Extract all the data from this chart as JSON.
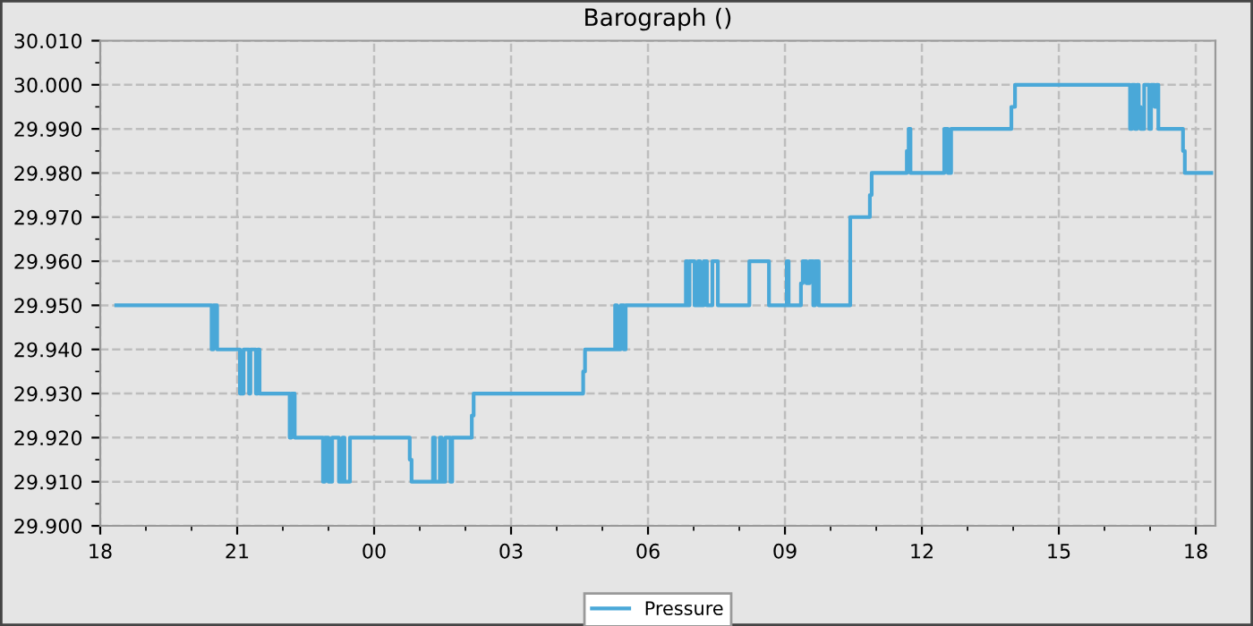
{
  "chart_data": {
    "type": "step",
    "title": "Barograph ()",
    "x": [
      18.35,
      20.44,
      20.48,
      20.56,
      21.06,
      21.14,
      21.26,
      21.29,
      21.41,
      21.45,
      21.49,
      22.15,
      22.19,
      22.26,
      22.88,
      22.92,
      23.0,
      23.08,
      23.23,
      23.31,
      23.35,
      23.47,
      24.78,
      24.82,
      25.29,
      25.33,
      25.44,
      25.48,
      25.56,
      25.67,
      25.71,
      26.14,
      26.18,
      28.58,
      28.62,
      29.28,
      29.32,
      29.4,
      29.47,
      29.51,
      30.83,
      30.87,
      30.91,
      31.02,
      31.1,
      31.14,
      31.22,
      31.29,
      31.41,
      31.53,
      32.22,
      32.65,
      33.04,
      33.08,
      33.35,
      33.39,
      33.47,
      33.54,
      33.62,
      33.66,
      33.74,
      34.43,
      34.86,
      34.9,
      35.67,
      35.71,
      35.75,
      36.49,
      36.57,
      36.64,
      37.96,
      38.04,
      40.56,
      40.6,
      40.67,
      40.71,
      40.75,
      40.79,
      40.87,
      40.98,
      41.02,
      41.1,
      41.14,
      41.18,
      41.72,
      41.76,
      42.34
    ],
    "series": [
      {
        "name": "Pressure",
        "color": "#4aa8d8",
        "values": [
          29.95,
          29.94,
          29.95,
          29.94,
          29.93,
          29.94,
          29.93,
          29.94,
          29.93,
          29.94,
          29.93,
          29.92,
          29.93,
          29.92,
          29.91,
          29.92,
          29.91,
          29.92,
          29.91,
          29.92,
          29.91,
          29.92,
          29.915,
          29.91,
          29.92,
          29.91,
          29.92,
          29.91,
          29.92,
          29.91,
          29.92,
          29.925,
          29.93,
          29.935,
          29.94,
          29.95,
          29.94,
          29.95,
          29.94,
          29.95,
          29.96,
          29.95,
          29.96,
          29.95,
          29.96,
          29.95,
          29.96,
          29.95,
          29.96,
          29.95,
          29.96,
          29.95,
          29.96,
          29.95,
          29.955,
          29.96,
          29.955,
          29.96,
          29.95,
          29.96,
          29.95,
          29.97,
          29.975,
          29.98,
          29.985,
          29.99,
          29.98,
          29.99,
          29.98,
          29.99,
          29.995,
          30.0,
          29.99,
          30.0,
          29.99,
          30.0,
          29.995,
          29.99,
          30.0,
          29.99,
          30.0,
          29.995,
          30.0,
          29.99,
          29.985,
          29.98,
          29.98
        ]
      }
    ],
    "xlim": [
      18,
      42.43
    ],
    "xticks": [
      {
        "value": 18,
        "label": "18"
      },
      {
        "value": 21,
        "label": "21"
      },
      {
        "value": 24,
        "label": "00"
      },
      {
        "value": 27,
        "label": "03"
      },
      {
        "value": 30,
        "label": "06"
      },
      {
        "value": 33,
        "label": "09"
      },
      {
        "value": 36,
        "label": "12"
      },
      {
        "value": 39,
        "label": "15"
      },
      {
        "value": 42,
        "label": "18"
      }
    ],
    "ylim": [
      29.9,
      30.01
    ],
    "yticks": [
      {
        "value": 29.9,
        "label": "29.900"
      },
      {
        "value": 29.91,
        "label": "29.910"
      },
      {
        "value": 29.92,
        "label": "29.920"
      },
      {
        "value": 29.93,
        "label": "29.930"
      },
      {
        "value": 29.94,
        "label": "29.940"
      },
      {
        "value": 29.95,
        "label": "29.950"
      },
      {
        "value": 29.96,
        "label": "29.960"
      },
      {
        "value": 29.97,
        "label": "29.970"
      },
      {
        "value": 29.98,
        "label": "29.980"
      },
      {
        "value": 29.99,
        "label": "29.990"
      },
      {
        "value": 30.0,
        "label": "30.000"
      },
      {
        "value": 30.01,
        "label": "30.010"
      }
    ],
    "grid": true,
    "legend": "bottom",
    "line_style": "solid",
    "marker": "none"
  }
}
